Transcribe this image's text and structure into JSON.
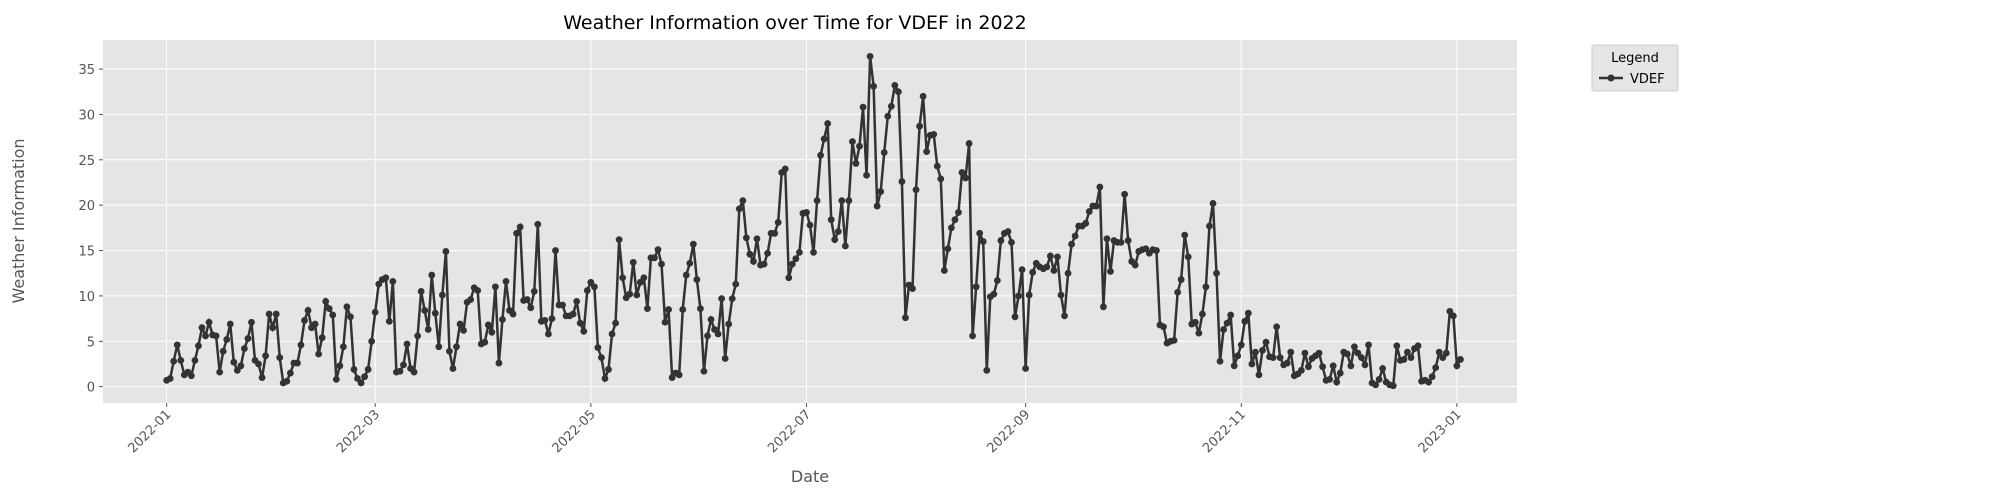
{
  "chart_data": {
    "type": "line",
    "title": "Weather Information over Time for VDEF in 2022",
    "xlabel": "Date",
    "ylabel": "Weather Information",
    "x_ticks": [
      "2022-01",
      "2022-03",
      "2022-05",
      "2022-07",
      "2022-09",
      "2022-11",
      "2023-01"
    ],
    "y_ticks": [
      0,
      5,
      10,
      15,
      20,
      25,
      30,
      35
    ],
    "xlim": [
      "2021-12-14",
      "2023-01-18"
    ],
    "ylim": [
      -1.8,
      38.2
    ],
    "grid": true,
    "legend": {
      "title": "Legend",
      "placement": "outside-top-right",
      "entries": [
        "VDEF"
      ]
    },
    "series": [
      {
        "name": "VDEF",
        "color": "#333333",
        "x_start": "2022-01-01",
        "x_end": "2022-12-31",
        "x_step": "1 day",
        "values": [
          0.7,
          0.9,
          2.8,
          4.6,
          2.9,
          1.3,
          1.6,
          1.2,
          2.9,
          4.5,
          6.5,
          5.6,
          7.1,
          5.7,
          5.6,
          1.6,
          3.9,
          5.2,
          6.9,
          2.7,
          1.8,
          2.3,
          4.2,
          5.3,
          7.1,
          2.9,
          2.5,
          1.0,
          3.4,
          8.0,
          6.5,
          8.0,
          3.2,
          0.4,
          0.6,
          1.5,
          2.6,
          2.6,
          4.6,
          7.3,
          8.4,
          6.5,
          6.9,
          3.6,
          5.4,
          9.4,
          8.6,
          7.9,
          0.8,
          2.3,
          4.4,
          8.8,
          7.7,
          1.9,
          0.9,
          0.4,
          1.1,
          1.9,
          5.0,
          8.2,
          11.3,
          11.8,
          12.0,
          7.2,
          11.6,
          1.6,
          1.7,
          2.4,
          4.7,
          2.0,
          1.6,
          5.6,
          10.5,
          8.4,
          6.3,
          12.3,
          8.1,
          4.4,
          10.1,
          14.9,
          3.9,
          2.0,
          4.4,
          6.9,
          6.2,
          9.3,
          9.6,
          10.9,
          10.6,
          4.7,
          4.9,
          6.8,
          6.0,
          11.0,
          2.6,
          7.4,
          11.6,
          8.4,
          8.0,
          16.9,
          17.6,
          9.5,
          9.6,
          8.7,
          10.5,
          17.9,
          7.2,
          7.3,
          5.8,
          7.5,
          15.0,
          9.0,
          9.0,
          7.8,
          7.8,
          8.0,
          9.4,
          7.0,
          6.1,
          10.6,
          11.5,
          11.0,
          4.3,
          3.2,
          0.9,
          1.9,
          5.8,
          7.0,
          16.2,
          12.0,
          9.8,
          10.2,
          13.7,
          10.1,
          11.5,
          12.0,
          8.6,
          14.2,
          14.2,
          15.1,
          13.5,
          7.1,
          8.5,
          1.0,
          1.5,
          1.3,
          8.5,
          12.3,
          13.6,
          15.7,
          11.8,
          8.6,
          1.7,
          5.6,
          7.4,
          6.3,
          5.8,
          9.7,
          3.1,
          6.9,
          9.7,
          11.3,
          19.6,
          20.5,
          16.4,
          14.6,
          13.8,
          16.3,
          13.4,
          13.5,
          14.7,
          16.9,
          16.9,
          18.1,
          23.6,
          24.0,
          12.0,
          13.5,
          14.1,
          14.8,
          19.1,
          19.2,
          17.8,
          14.8,
          20.5,
          25.5,
          27.3,
          29.0,
          18.4,
          16.2,
          17.1,
          20.5,
          15.5,
          20.5,
          27.0,
          24.6,
          26.5,
          30.8,
          23.3,
          36.4,
          33.1,
          19.9,
          21.5,
          25.8,
          29.8,
          30.9,
          33.2,
          32.5,
          22.6,
          7.6,
          11.2,
          10.8,
          21.7,
          28.7,
          32.0,
          25.9,
          27.7,
          27.8,
          24.3,
          22.9,
          12.8,
          15.2,
          17.5,
          18.4,
          19.2,
          23.6,
          23.0,
          26.8,
          5.6,
          11.0,
          16.9,
          16.0,
          1.8,
          9.9,
          10.2,
          11.7,
          16.1,
          16.9,
          17.1,
          15.9,
          7.7,
          10.0,
          12.9,
          2.0,
          10.1,
          12.6,
          13.6,
          13.2,
          13.0,
          13.2,
          14.4,
          12.8,
          14.3,
          10.1,
          7.8,
          12.5,
          15.7,
          16.6,
          17.7,
          17.7,
          18.0,
          19.3,
          19.9,
          19.9,
          22.0,
          8.8,
          16.3,
          12.7,
          16.1,
          15.9,
          15.9,
          21.2,
          16.1,
          13.8,
          13.4,
          14.9,
          15.1,
          15.2,
          14.7,
          15.1,
          15.0,
          6.8,
          6.6,
          4.8,
          5.0,
          5.1,
          10.4,
          11.8,
          16.7,
          14.3,
          6.9,
          7.1,
          5.9,
          8.0,
          11.0,
          17.7,
          20.2,
          12.5,
          2.8,
          6.3,
          7.0,
          7.9,
          2.3,
          3.4,
          4.6,
          7.2,
          8.1,
          2.5,
          3.8,
          1.3,
          4.0,
          4.9,
          3.3,
          3.2,
          6.6,
          3.2,
          2.4,
          2.6,
          3.8,
          1.2,
          1.4,
          1.8,
          3.7,
          2.2,
          3.1,
          3.4,
          3.7,
          2.2,
          0.7,
          0.8,
          2.3,
          0.5,
          1.5,
          3.8,
          3.6,
          2.3,
          4.4,
          3.7,
          3.2,
          2.4,
          4.6,
          0.4,
          0.2,
          0.8,
          2.0,
          0.5,
          0.2,
          0.1,
          4.5,
          2.9,
          3.0,
          3.8,
          3.2,
          4.2,
          4.5,
          0.6,
          0.7,
          0.5,
          1.1,
          2.1,
          3.8,
          3.2,
          3.7,
          8.3,
          7.8,
          2.3,
          3.0
        ]
      }
    ]
  }
}
